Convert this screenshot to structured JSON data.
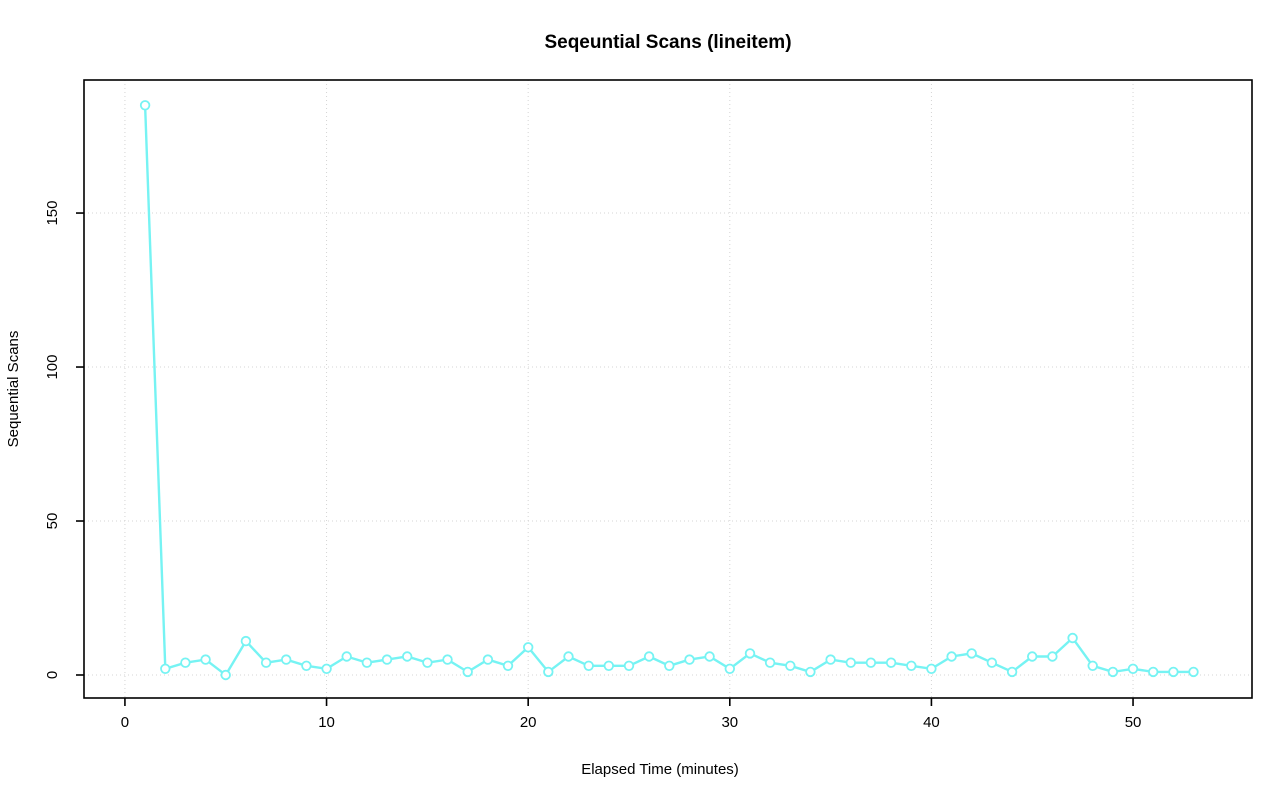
{
  "chart_data": {
    "type": "line",
    "title": "Seqeuntial Scans (lineitem)",
    "xlabel": "Elapsed Time (minutes)",
    "ylabel": "Sequential Scans",
    "series": [
      {
        "name": "Sequential Scans",
        "x": [
          1,
          2,
          3,
          4,
          5,
          6,
          7,
          8,
          9,
          10,
          11,
          12,
          13,
          14,
          15,
          16,
          17,
          18,
          19,
          20,
          21,
          22,
          23,
          24,
          25,
          26,
          27,
          28,
          29,
          30,
          31,
          32,
          33,
          34,
          35,
          36,
          37,
          38,
          39,
          40,
          41,
          42,
          43,
          44,
          45,
          46,
          47,
          48,
          49,
          50,
          51,
          52,
          53
        ],
        "y": [
          185,
          2,
          4,
          5,
          0,
          11,
          4,
          5,
          3,
          2,
          6,
          4,
          5,
          6,
          4,
          5,
          1,
          5,
          3,
          9,
          1,
          6,
          3,
          3,
          3,
          6,
          3,
          5,
          6,
          2,
          7,
          4,
          3,
          1,
          5,
          4,
          4,
          4,
          3,
          2,
          6,
          7,
          4,
          1,
          6,
          6,
          12,
          3,
          1,
          2,
          1,
          1,
          1
        ]
      }
    ],
    "xticks": [
      0,
      10,
      20,
      30,
      40,
      50
    ],
    "yticks": [
      0,
      50,
      100,
      150
    ],
    "xlim": [
      -2.03,
      55.9
    ],
    "ylim": [
      -7.47,
      193.2
    ],
    "grid": "dotted",
    "legend": "none",
    "marker": "open-circle",
    "colors": {
      "series": "#76F3F3",
      "grid": "#D4D4D4",
      "axis": "#000000",
      "text": "#000000",
      "background": "#FFFFFF"
    }
  }
}
